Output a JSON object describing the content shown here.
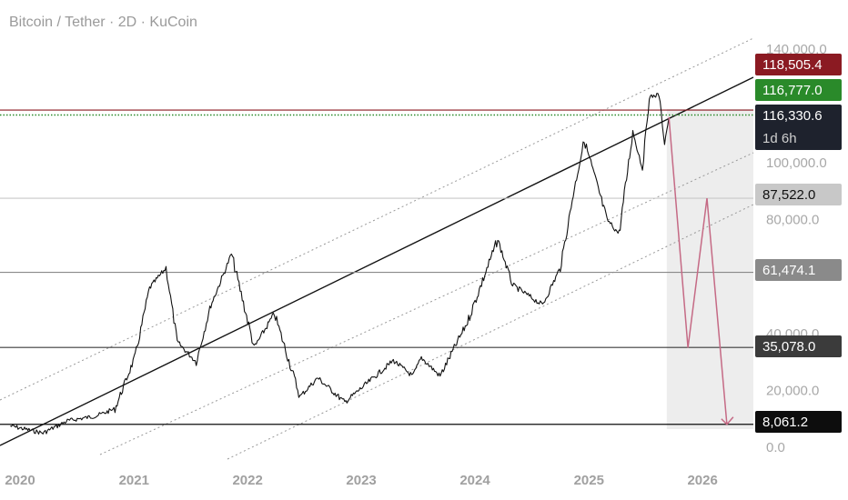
{
  "header": {
    "title": "Bitcoin / Tether · 2D · KuCoin"
  },
  "colors": {
    "resistance_red": "#8b1a22",
    "current_green": "#2a8a2a",
    "price_dark": "#1e222d",
    "projection": "#c56a85",
    "candles": "#111111"
  },
  "chart_data": {
    "type": "line",
    "title": "Bitcoin / Tether · 2D · KuCoin",
    "y_axis": {
      "ticks": [
        "140,000.0",
        "100,000.0",
        "80,000.0",
        "40,000.0",
        "20,000.0",
        "0.0"
      ]
    },
    "x_axis": {
      "ticks": [
        "2020",
        "2021",
        "2022",
        "2023",
        "2024",
        "2025",
        "2026"
      ]
    },
    "series": [
      {
        "values": [
          [
            "2019-12-01",
            7500
          ],
          [
            "2020-03-15",
            5000
          ],
          [
            "2020-06-01",
            9300
          ],
          [
            "2020-09-01",
            11000
          ],
          [
            "2020-11-01",
            13500
          ],
          [
            "2021-01-05",
            32000
          ],
          [
            "2021-02-20",
            56000
          ],
          [
            "2021-04-14",
            63000
          ],
          [
            "2021-05-20",
            37000
          ],
          [
            "2021-07-20",
            30000
          ],
          [
            "2021-09-05",
            50000
          ],
          [
            "2021-10-20",
            62000
          ],
          [
            "2021-11-10",
            68000
          ],
          [
            "2022-01-22",
            35000
          ],
          [
            "2022-03-28",
            47000
          ],
          [
            "2022-06-18",
            17800
          ],
          [
            "2022-08-14",
            24400
          ],
          [
            "2022-11-09",
            15800
          ],
          [
            "2023-01-25",
            23000
          ],
          [
            "2023-04-14",
            30500
          ],
          [
            "2023-06-15",
            25000
          ],
          [
            "2023-07-13",
            31500
          ],
          [
            "2023-09-11",
            25000
          ],
          [
            "2023-12-08",
            44000
          ],
          [
            "2024-03-14",
            73000
          ],
          [
            "2024-05-01",
            57000
          ],
          [
            "2024-08-05",
            50000
          ],
          [
            "2024-10-01",
            63000
          ],
          [
            "2024-11-12",
            89000
          ],
          [
            "2024-12-17",
            108000
          ],
          [
            "2025-02-28",
            80000
          ],
          [
            "2025-04-08",
            75000
          ],
          [
            "2025-05-22",
            111000
          ],
          [
            "2025-06-22",
            98000
          ],
          [
            "2025-07-14",
            123000
          ],
          [
            "2025-08-14",
            124000
          ],
          [
            "2025-09-01",
            107000
          ],
          [
            "2025-09-15",
            116000
          ]
        ]
      }
    ],
    "horizontal_levels": [
      {
        "label": "118,505.4",
        "value": 118505.4,
        "color": "#8b1a22",
        "text_color": "#ffffff",
        "line": "solid"
      },
      {
        "label": "116,777.0",
        "value": 116777.0,
        "color": "#2a8a2a",
        "text_color": "#ffffff",
        "line": "dotted"
      },
      {
        "label": "116,330.6",
        "sublabel": "1d 6h",
        "value": 116330.6,
        "color": "#1e222d",
        "text_color": "#ffffff",
        "line": "none"
      },
      {
        "label": "87,522.0",
        "value": 87522.0,
        "color": "#c8c8c8",
        "text_color": "#111111",
        "line": "solid"
      },
      {
        "label": "61,474.1",
        "value": 61474.1,
        "color": "#8a8a8a",
        "text_color": "#ffffff",
        "line": "solid"
      },
      {
        "label": "35,078.0",
        "value": 35078.0,
        "color": "#3b3b3b",
        "text_color": "#ffffff",
        "line": "solid"
      },
      {
        "label": "8,061.2",
        "value": 8061.2,
        "color": "#0d0d0d",
        "text_color": "#ffffff",
        "line": "solid"
      }
    ],
    "projection_path": [
      [
        "2025-09-15",
        116000
      ],
      [
        "2025-11-15",
        35000
      ],
      [
        "2026-01-15",
        87522
      ],
      [
        "2026-03-20",
        8061
      ]
    ],
    "grid": false,
    "legend": "none"
  }
}
